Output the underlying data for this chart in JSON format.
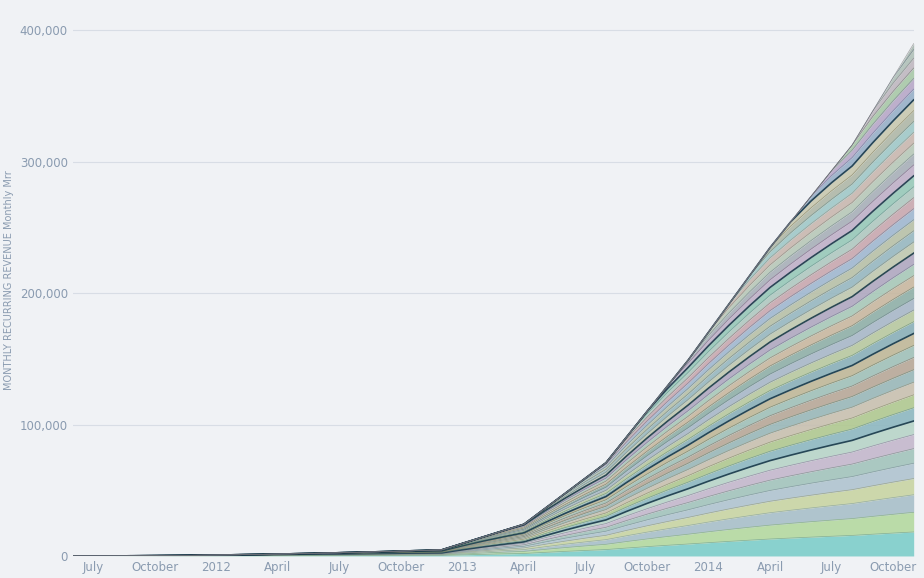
{
  "ylabel": "MONTHLY RECURRING REVENUE Monthly Mrr",
  "background_color": "#f0f2f5",
  "grid_color": "#d8dde5",
  "text_color": "#8a9bb0",
  "ylim": [
    0,
    420000
  ],
  "yticks": [
    0,
    100000,
    200000,
    300000,
    400000
  ],
  "n_cohorts": 42,
  "n_months": 42,
  "x_tick_labels": [
    "July",
    "October",
    "2012",
    "April",
    "July",
    "October",
    "2013",
    "April",
    "July",
    "October",
    "2014",
    "April",
    "July",
    "October"
  ],
  "x_tick_positions": [
    1,
    4,
    7,
    10,
    13,
    16,
    19,
    22,
    25,
    28,
    31,
    34,
    37,
    40
  ],
  "cohort_colors": [
    "#7ececa",
    "#b5d9a0",
    "#a8bfc9",
    "#c9d4a3",
    "#b0c4d0",
    "#a3c4bc",
    "#c4b8cc",
    "#b8d4c8",
    "#8eb8c0",
    "#b0c890",
    "#c8c0b0",
    "#9ab8b8",
    "#b8a898",
    "#a0c0b8",
    "#c0b898",
    "#8ab0b8",
    "#b8c8a0",
    "#a8b8c8",
    "#90b0a8",
    "#c8b8a0",
    "#a8c8b8",
    "#b0a8c0",
    "#c0c8b0",
    "#98b8c0",
    "#b8c0a8",
    "#a0b8d0",
    "#c8a8b0",
    "#b0c8c0",
    "#98c8b8",
    "#c0b0c8",
    "#a8b0b8",
    "#b8c8b8",
    "#c8b8b0",
    "#a0c8c8",
    "#b0b8a8",
    "#c8c8b0",
    "#98b0c8",
    "#b8a8c8",
    "#a8c8a8",
    "#c0b8c0",
    "#b0c0b8",
    "#a8b8b0"
  ],
  "separator_colors": [
    "#5a9090",
    "#7aaa60",
    "#7090a0",
    "#8a9060",
    "#708090",
    "#608070",
    "#806090",
    "#608080",
    "#508090",
    "#708050",
    "#908060",
    "#508070",
    "#806050",
    "#507060",
    "#806050",
    "#508070",
    "#708060",
    "#607080",
    "#507060",
    "#906050",
    "#607080",
    "#605080",
    "#808060",
    "#507080",
    "#708060",
    "#507090",
    "#905060",
    "#608080",
    "#508070",
    "#805080",
    "#607080",
    "#708070",
    "#908070",
    "#508080",
    "#707050",
    "#908070",
    "#507090",
    "#706090",
    "#607060",
    "#807080",
    "#607080",
    "#707070"
  ],
  "dark_separator_indices": [
    7,
    14,
    21,
    28,
    35
  ]
}
